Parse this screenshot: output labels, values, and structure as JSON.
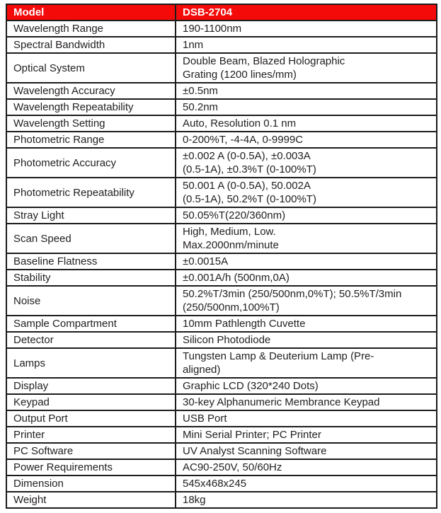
{
  "colors": {
    "header_bg": "#f50a0a",
    "header_text": "#ffffff",
    "border": "#1c1c1c",
    "body_text": "#242021",
    "page_bg": "#ffffff"
  },
  "header": {
    "col1": "Model",
    "col2": "DSB-2704"
  },
  "rows": [
    {
      "name": "Wavelength Range",
      "value": "190-1100nm"
    },
    {
      "name": "Spectral Bandwidth",
      "value": "1nm"
    },
    {
      "name": "Optical System",
      "value": "Double Beam, Blazed Holographic\nGrating (1200 lines/mm)"
    },
    {
      "name": "Wavelength Accuracy",
      "value": "±0.5nm"
    },
    {
      "name": "Wavelength Repeatability",
      "value": "50.2nm"
    },
    {
      "name": "Wavelength Setting",
      "value": "Auto, Resolution 0.1 nm"
    },
    {
      "name": "Photometric Range",
      "value": "0-200%T, -4-4A, 0-9999C"
    },
    {
      "name": "Photometric Accuracy",
      "value": "±0.002 A (0-0.5A), ±0.003A\n(0.5-1A), ±0.3%T (0-100%T)"
    },
    {
      "name": "Photometric Repeatability",
      "value": "50.001 A (0-0.5A), 50.002A\n(0.5-1A), 50.2%T (0-100%T)"
    },
    {
      "name": "Stray Light",
      "value": "50.05%T(220/360nm)"
    },
    {
      "name": "Scan Speed",
      "value": "High, Medium, Low.\nMax.2000nm/minute"
    },
    {
      "name": "Baseline Flatness",
      "value": "±0.0015A"
    },
    {
      "name": "Stability",
      "value": "±0.001A/h (500nm,0A)"
    },
    {
      "name": "Noise",
      "value": "50.2%T/3min (250/500nm,0%T); 50.5%T/3min\n(250/500nm,100%T)"
    },
    {
      "name": "Sample Compartment",
      "value": "10mm Pathlength Cuvette"
    },
    {
      "name": "Detector",
      "value": "Silicon Photodiode"
    },
    {
      "name": "Lamps",
      "value": "Tungsten Lamp & Deuterium Lamp (Pre-\naligned)"
    },
    {
      "name": "Display",
      "value": "Graphic LCD (320*240 Dots)"
    },
    {
      "name": "Keypad",
      "value": "30-key Alphanumeric Membrance Keypad"
    },
    {
      "name": "Output Port",
      "value": "USB Port"
    },
    {
      "name": "Printer",
      "value": "Mini Serial Printer; PC Printer"
    },
    {
      "name": "PC Software",
      "value": "UV Analyst Scanning Software"
    },
    {
      "name": "Power Requirements",
      "value": "AC90-250V, 50/60Hz"
    },
    {
      "name": "Dimension",
      "value": "545x468x245"
    },
    {
      "name": "Weight",
      "value": "18kg"
    }
  ]
}
